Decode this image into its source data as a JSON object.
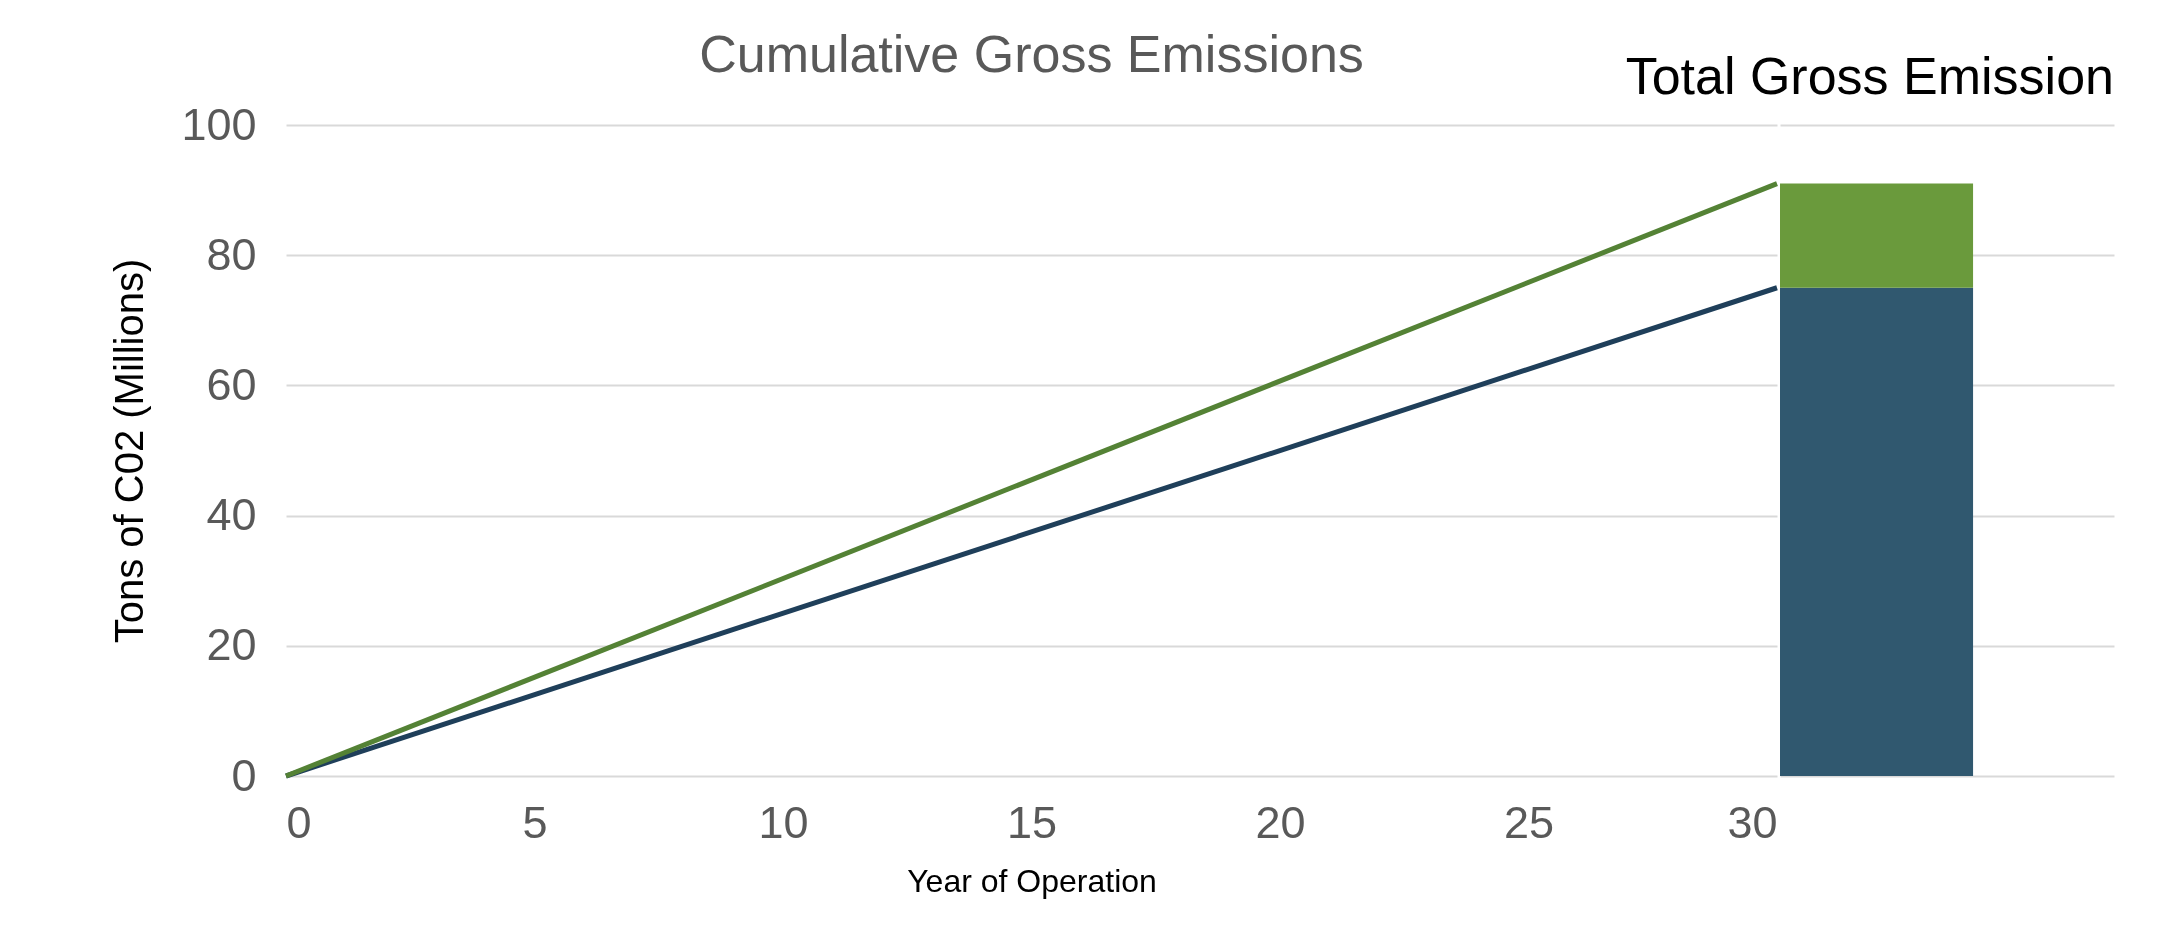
{
  "chart_data": [
    {
      "type": "line",
      "title": "Cumulative Gross Emissions",
      "xlabel": "Year of Operation",
      "ylabel": "Tons of C02 (Millions)",
      "x": [
        0,
        30
      ],
      "xlim": [
        0,
        30
      ],
      "xticks": [
        0,
        5,
        10,
        15,
        20,
        25,
        30
      ],
      "ylim": [
        0,
        100
      ],
      "yticks": [
        0,
        20,
        40,
        60,
        80,
        100
      ],
      "grid": "y",
      "series": [
        {
          "color": "#1f3f5a",
          "values": [
            0,
            75
          ]
        },
        {
          "color": "#548235",
          "values": [
            0,
            91
          ]
        }
      ]
    },
    {
      "type": "bar",
      "title": "Total Gross Emission",
      "categories": [
        null
      ],
      "stacked": true,
      "ylim": [
        0,
        100
      ],
      "yticks": [
        0,
        20,
        40,
        60,
        80,
        100
      ],
      "grid": "y",
      "tick_labels": false,
      "series": [
        {
          "color": "#30586f",
          "values": [
            75
          ]
        },
        {
          "color": "#6a9a3c",
          "values": [
            16
          ]
        }
      ]
    }
  ]
}
